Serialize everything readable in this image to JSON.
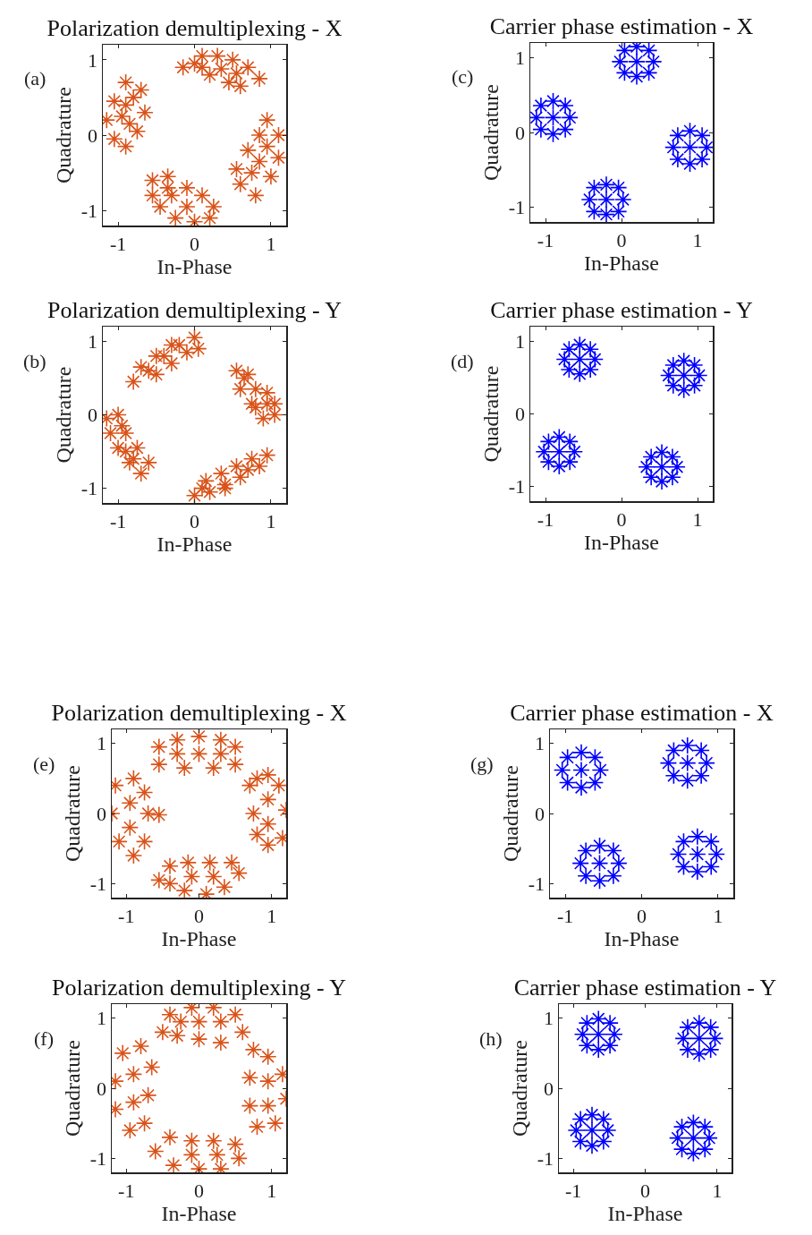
{
  "chart_data": [
    {
      "type": "scatter",
      "title": "Polarization demultiplexing - X",
      "xlabel": "In-Phase",
      "ylabel": "Quadrature",
      "annotations": [
        "(a)"
      ],
      "color": "#d95319",
      "marker": "cross",
      "xlim": [
        -1.2,
        1.2
      ],
      "ylim": [
        -1.2,
        1.2
      ],
      "xticks": [
        -1,
        0,
        1
      ],
      "yticks": [
        -1,
        0,
        1
      ],
      "x": [
        -0.15,
        0,
        0.1,
        0.3,
        0.5,
        0.7,
        0.85,
        0.6,
        0.45,
        0.2,
        0.35,
        0.55,
        0.1,
        -0.9,
        -0.7,
        -0.65,
        -0.75,
        -0.9,
        -1.05,
        -1.15,
        -1.05,
        -0.9,
        -0.85,
        -0.95,
        -0.8,
        0.95,
        1.1,
        1.1,
        1,
        0.8,
        0.6,
        0.55,
        0.7,
        0.85,
        0.85,
        0.95,
        0.75,
        -0.55,
        -0.35,
        -0.1,
        0.1,
        0.25,
        0.2,
        0,
        -0.25,
        -0.45,
        -0.55,
        -0.3,
        -0.1,
        -0.35
      ],
      "values": [
        0.9,
        0.95,
        1.05,
        1.05,
        1,
        0.9,
        0.75,
        0.65,
        0.7,
        0.8,
        0.88,
        0.82,
        0.9,
        0.7,
        0.6,
        0.3,
        0.05,
        -0.15,
        -0.05,
        0.2,
        0.45,
        0.4,
        0.15,
        0.25,
        0.5,
        0.2,
        0,
        -0.3,
        -0.55,
        -0.8,
        -0.65,
        -0.45,
        -0.2,
        0,
        -0.35,
        -0.15,
        -0.5,
        -0.6,
        -0.55,
        -0.7,
        -0.8,
        -0.95,
        -1.1,
        -1.15,
        -1.1,
        -0.95,
        -0.8,
        -0.8,
        -0.95,
        -0.7
      ]
    },
    {
      "type": "scatter",
      "title": "Polarization demultiplexing - Y",
      "xlabel": "In-Phase",
      "ylabel": "Quadrature",
      "annotations": [
        "(b)"
      ],
      "color": "#d95319",
      "marker": "cross",
      "xlim": [
        -1.2,
        1.2
      ],
      "ylim": [
        -1.2,
        1.2
      ],
      "xticks": [
        -1,
        0,
        1
      ],
      "yticks": [
        -1,
        0,
        1
      ],
      "x": [
        -0.8,
        -0.6,
        -0.4,
        -0.2,
        0,
        -0.1,
        -0.3,
        -0.5,
        -0.7,
        -0.3,
        -0.5,
        0.05,
        0.55,
        0.7,
        0.8,
        0.95,
        1.05,
        0.9,
        0.75,
        0.6,
        0.8,
        0.65,
        0.95,
        1.05,
        -1.15,
        -1,
        -0.9,
        -0.75,
        -0.6,
        -0.7,
        -0.85,
        -1,
        -1.1,
        -0.9,
        -0.8,
        -0.95,
        0,
        0.2,
        0.4,
        0.6,
        0.85,
        0.95,
        0.75,
        0.55,
        0.35,
        0.15,
        0.4,
        0.7,
        0.1
      ],
      "values": [
        0.45,
        0.6,
        0.8,
        0.95,
        1.05,
        0.85,
        0.7,
        0.55,
        0.65,
        0.95,
        0.8,
        0.9,
        0.6,
        0.55,
        0.35,
        0.15,
        0,
        -0.05,
        0.15,
        0.35,
        0.1,
        0.5,
        0.3,
        0.15,
        -0.05,
        0,
        -0.25,
        -0.45,
        -0.65,
        -0.8,
        -0.65,
        -0.45,
        -0.25,
        -0.5,
        -0.6,
        -0.15,
        -1.1,
        -1.05,
        -0.95,
        -0.85,
        -0.7,
        -0.55,
        -0.6,
        -0.7,
        -0.8,
        -0.9,
        -1,
        -0.75,
        -1
      ]
    },
    {
      "type": "scatter",
      "title": "Carrier phase estimation - X",
      "xlabel": "In-Phase",
      "ylabel": "Quadrature",
      "annotations": [
        "(c)"
      ],
      "color": "#0000ff",
      "marker": "cross",
      "xlim": [
        -1.2,
        1.2
      ],
      "ylim": [
        -1.2,
        1.2
      ],
      "xticks": [
        -1,
        0,
        1
      ],
      "yticks": [
        -1,
        0,
        1
      ],
      "x": [
        0.2,
        0.42,
        -0.02,
        0.2,
        0.2,
        0.36,
        0.04,
        0.36,
        0.04,
        -0.9,
        -0.68,
        -1.12,
        -0.9,
        -0.9,
        -0.74,
        -1.06,
        -0.74,
        -1.06,
        0.9,
        1.12,
        0.68,
        0.9,
        0.9,
        1.06,
        0.74,
        1.06,
        0.74,
        -0.2,
        0.02,
        -0.42,
        -0.2,
        -0.2,
        -0.04,
        -0.36,
        -0.04,
        -0.36
      ],
      "values": [
        0.95,
        0.95,
        0.95,
        1.15,
        0.75,
        1.1,
        1.1,
        0.8,
        0.8,
        0.2,
        0.2,
        0.2,
        0.42,
        -0.02,
        0.36,
        0.36,
        0.04,
        0.04,
        -0.2,
        -0.2,
        -0.2,
        0.02,
        -0.42,
        -0.04,
        -0.04,
        -0.36,
        -0.36,
        -0.9,
        -0.9,
        -0.9,
        -0.7,
        -1.1,
        -0.74,
        -0.74,
        -1.06,
        -1.06
      ]
    },
    {
      "type": "scatter",
      "title": "Carrier phase estimation - Y",
      "xlabel": "In-Phase",
      "ylabel": "Quadrature",
      "annotations": [
        "(d)"
      ],
      "color": "#0000ff",
      "marker": "cross",
      "xlim": [
        -1.2,
        1.2
      ],
      "ylim": [
        -1.2,
        1.2
      ],
      "xticks": [
        -1,
        0,
        1
      ],
      "yticks": [
        -1,
        0,
        1
      ],
      "x": [
        -0.55,
        -0.35,
        -0.75,
        -0.55,
        -0.55,
        -0.41,
        -0.69,
        -0.41,
        -0.69,
        0.82,
        1.02,
        0.62,
        0.82,
        0.82,
        0.96,
        0.68,
        0.96,
        0.68,
        -0.82,
        -0.62,
        -1.02,
        -0.82,
        -0.82,
        -0.68,
        -0.96,
        -0.68,
        -0.96,
        0.53,
        0.73,
        0.33,
        0.53,
        0.53,
        0.67,
        0.39,
        0.67,
        0.39
      ],
      "values": [
        0.75,
        0.75,
        0.75,
        0.95,
        0.55,
        0.89,
        0.89,
        0.61,
        0.61,
        0.53,
        0.53,
        0.53,
        0.73,
        0.33,
        0.67,
        0.67,
        0.39,
        0.39,
        -0.52,
        -0.52,
        -0.52,
        -0.32,
        -0.72,
        -0.38,
        -0.38,
        -0.66,
        -0.66,
        -0.73,
        -0.73,
        -0.73,
        -0.53,
        -0.93,
        -0.59,
        -0.59,
        -0.87,
        -0.87
      ]
    },
    {
      "type": "scatter",
      "title": "Polarization demultiplexing - X",
      "xlabel": "In-Phase",
      "ylabel": "Quadrature",
      "annotations": [
        "(e)"
      ],
      "color": "#d95319",
      "marker": "cross",
      "xlim": [
        -1.2,
        1.2
      ],
      "ylim": [
        -1.2,
        1.2
      ],
      "xticks": [
        -1,
        0,
        1
      ],
      "yticks": [
        -1,
        0,
        1
      ],
      "x": [
        -0.55,
        -0.55,
        -0.3,
        0,
        0.3,
        0.5,
        0.5,
        0.2,
        -0.2,
        0,
        -0.3,
        0.3,
        -1.15,
        -0.9,
        -0.75,
        -0.7,
        -0.75,
        -0.9,
        -1.1,
        -1.2,
        -0.95,
        -0.95,
        -0.55,
        0.8,
        0.95,
        1.1,
        1.2,
        1.15,
        0.95,
        0.8,
        0.75,
        0.95,
        0.95,
        0.7,
        -0.4,
        -0.15,
        0.15,
        0.45,
        0.55,
        0.35,
        0.1,
        -0.2,
        -0.4,
        -0.1,
        0.2,
        -0.55
      ],
      "values": [
        0.7,
        0.95,
        1.05,
        1.1,
        1.05,
        0.95,
        0.7,
        0.65,
        0.65,
        0.85,
        0.85,
        0.85,
        0.4,
        0.5,
        0.3,
        0,
        -0.4,
        -0.6,
        -0.4,
        0,
        0.15,
        -0.2,
        -0.02,
        0.5,
        0.55,
        0.4,
        0.05,
        -0.35,
        -0.45,
        -0.3,
        0,
        0.2,
        -0.15,
        0.4,
        -0.75,
        -0.7,
        -0.7,
        -0.7,
        -0.85,
        -1.05,
        -1.15,
        -1.1,
        -1,
        -0.9,
        -0.9,
        -0.95
      ]
    },
    {
      "type": "scatter",
      "title": "Polarization demultiplexing - Y",
      "xlabel": "In-Phase",
      "ylabel": "Quadrature",
      "annotations": [
        "(f)"
      ],
      "color": "#d95319",
      "marker": "cross",
      "xlim": [
        -1.2,
        1.2
      ],
      "ylim": [
        -1.2,
        1.2
      ],
      "xticks": [
        -1,
        0,
        1
      ],
      "yticks": [
        -1,
        0,
        1
      ],
      "x": [
        -0.5,
        -0.4,
        -0.1,
        0.2,
        0.5,
        0.6,
        0.3,
        0,
        -0.3,
        0,
        0.3,
        -0.25,
        -1.05,
        -0.8,
        -0.65,
        -0.7,
        -0.75,
        -0.95,
        -1.15,
        -1.15,
        -0.9,
        -0.9,
        0.75,
        0.95,
        1.15,
        1.2,
        1.05,
        0.8,
        0.7,
        0.7,
        0.95,
        0.95,
        -0.6,
        -0.4,
        -0.1,
        0.2,
        0.5,
        0.55,
        0.3,
        0,
        -0.35,
        -0.1,
        0.25
      ],
      "values": [
        0.8,
        1.05,
        1.15,
        1.15,
        1.05,
        0.8,
        0.65,
        0.7,
        0.75,
        0.95,
        0.95,
        0.95,
        0.5,
        0.6,
        0.3,
        -0.1,
        -0.5,
        -0.6,
        -0.3,
        0.1,
        0.2,
        -0.2,
        0.55,
        0.45,
        0.2,
        -0.15,
        -0.5,
        -0.55,
        -0.25,
        0.15,
        0.1,
        -0.25,
        -0.9,
        -0.7,
        -0.75,
        -0.75,
        -0.8,
        -1,
        -1.15,
        -1.15,
        -1.1,
        -0.95,
        -0.95
      ]
    },
    {
      "type": "scatter",
      "title": "Carrier phase estimation - X",
      "xlabel": "In-Phase",
      "ylabel": "Quadrature",
      "annotations": [
        "(g)"
      ],
      "color": "#0000ff",
      "marker": "cross",
      "xlim": [
        -1.2,
        1.2
      ],
      "ylim": [
        -1.2,
        1.2
      ],
      "xticks": [
        -1,
        0,
        1
      ],
      "yticks": [
        -1,
        0,
        1
      ],
      "x": [
        -0.79,
        -0.54,
        -1.04,
        -0.79,
        -0.79,
        -0.61,
        -0.97,
        -0.61,
        -0.97,
        0.6,
        0.85,
        0.35,
        0.6,
        0.6,
        0.78,
        0.42,
        0.78,
        0.42,
        -0.55,
        -0.3,
        -0.8,
        -0.55,
        -0.55,
        -0.37,
        -0.73,
        -0.37,
        -0.73,
        0.73,
        0.98,
        0.48,
        0.73,
        0.73,
        0.91,
        0.55,
        0.91,
        0.55
      ],
      "values": [
        0.62,
        0.62,
        0.62,
        0.87,
        0.37,
        0.8,
        0.8,
        0.44,
        0.44,
        0.72,
        0.72,
        0.72,
        0.97,
        0.47,
        0.9,
        0.9,
        0.54,
        0.54,
        -0.71,
        -0.71,
        -0.71,
        -0.46,
        -0.96,
        -0.53,
        -0.53,
        -0.89,
        -0.89,
        -0.58,
        -0.58,
        -0.58,
        -0.33,
        -0.83,
        -0.4,
        -0.4,
        -0.76,
        -0.76
      ]
    },
    {
      "type": "scatter",
      "title": "Carrier phase estimation - Y",
      "xlabel": "In-Phase",
      "ylabel": "Quadrature",
      "annotations": [
        "(h)"
      ],
      "color": "#0000ff",
      "marker": "cross",
      "xlim": [
        -1.2,
        1.2
      ],
      "ylim": [
        -1.2,
        1.2
      ],
      "xticks": [
        -1,
        0,
        1
      ],
      "yticks": [
        -1,
        0,
        1
      ],
      "x": [
        -0.65,
        -0.43,
        -0.87,
        -0.65,
        -0.65,
        -0.49,
        -0.81,
        -0.49,
        -0.81,
        0.75,
        0.97,
        0.53,
        0.75,
        0.75,
        0.91,
        0.59,
        0.91,
        0.59,
        -0.74,
        -0.52,
        -0.96,
        -0.74,
        -0.74,
        -0.58,
        -0.9,
        -0.58,
        -0.9,
        0.67,
        0.89,
        0.45,
        0.67,
        0.67,
        0.83,
        0.51,
        0.83,
        0.51
      ],
      "values": [
        0.77,
        0.77,
        0.77,
        0.99,
        0.55,
        0.93,
        0.93,
        0.61,
        0.61,
        0.71,
        0.71,
        0.71,
        0.93,
        0.49,
        0.87,
        0.87,
        0.55,
        0.55,
        -0.6,
        -0.6,
        -0.6,
        -0.38,
        -0.82,
        -0.44,
        -0.44,
        -0.76,
        -0.76,
        -0.71,
        -0.71,
        -0.71,
        -0.49,
        -0.93,
        -0.55,
        -0.55,
        -0.87,
        -0.87
      ]
    }
  ]
}
